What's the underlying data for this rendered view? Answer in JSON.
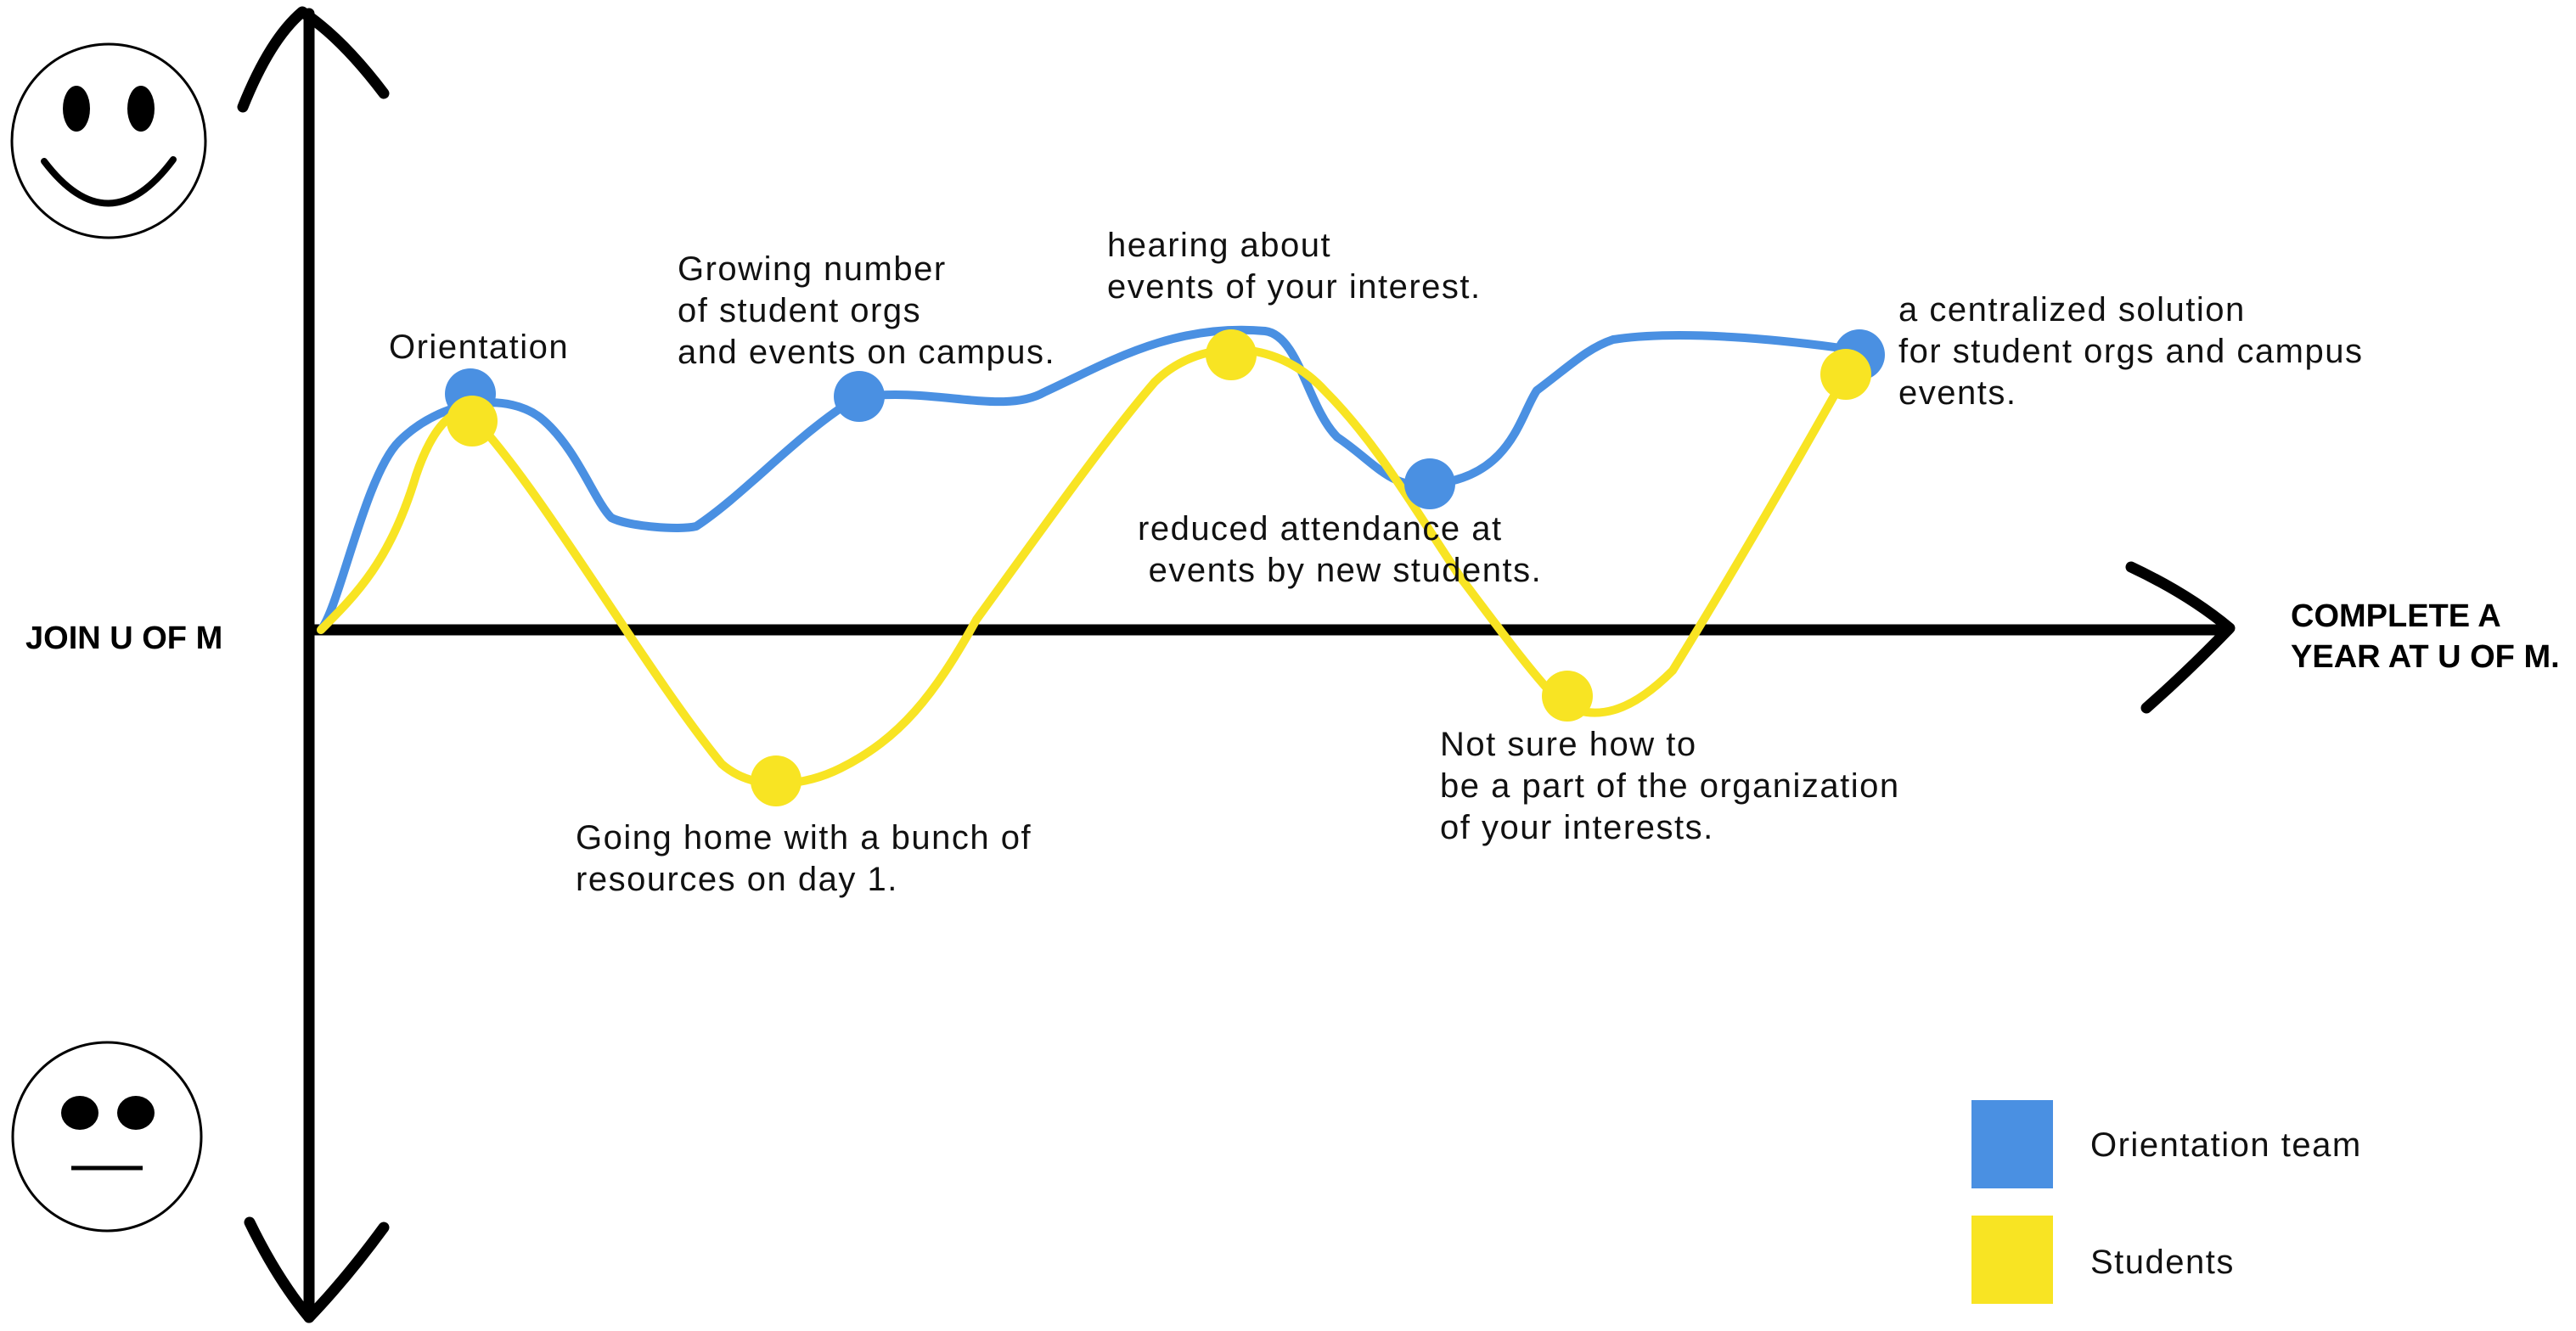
{
  "axes": {
    "start_label": "JOIN U OF M",
    "end_label_line1": "COMPLETE A",
    "end_label_line2": "YEAR AT U OF M."
  },
  "moods": {
    "top": "happy-face-icon",
    "bottom": "neutral-face-icon"
  },
  "series": [
    {
      "key": "team",
      "name": "Orientation team",
      "color": "#4A90E2"
    },
    {
      "key": "students",
      "name": "Students",
      "color": "#F8E423"
    }
  ],
  "annotations": {
    "orientation": [
      "Orientation"
    ],
    "growing": [
      "Growing number",
      "of student orgs",
      "and events on campus."
    ],
    "hearing": [
      "hearing about",
      "events of your interest."
    ],
    "centralized": [
      "a centralized solution",
      "for student orgs and campus",
      "events."
    ],
    "reduced": [
      "reduced attendance at",
      " events by new students."
    ],
    "going_home": [
      "Going home with a bunch of",
      "resources on day 1."
    ],
    "not_sure": [
      "Not sure how to",
      "be a part of the organization",
      "of your interests."
    ]
  },
  "legend": [
    {
      "label": "Orientation team",
      "color": "#4A90E2"
    },
    {
      "label": "Students",
      "color": "#F8E423"
    }
  ]
}
